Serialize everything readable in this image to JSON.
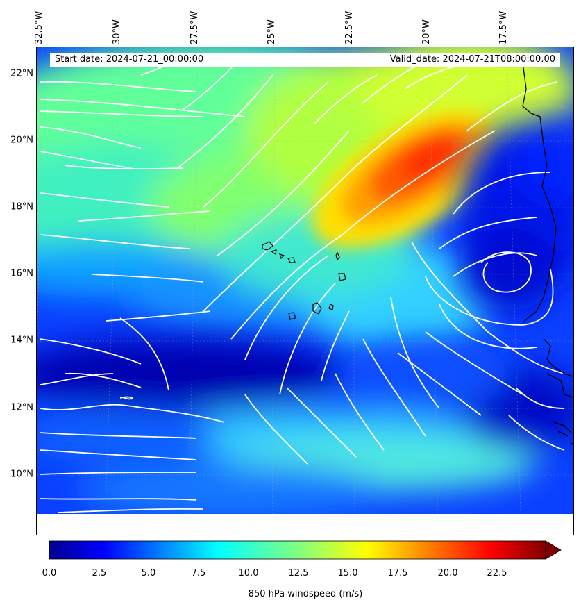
{
  "header": {
    "start_date": "Start date: 2024-07-21_00:00:00",
    "valid_date": "Valid_date: 2024-07-21T08:00:00.00"
  },
  "axes": {
    "lon_labels": [
      "32.5°W",
      "30°W",
      "27.5°W",
      "25°W",
      "22.5°W",
      "20°W",
      "17.5°W"
    ],
    "lat_labels": [
      "22°N",
      "20°N",
      "18°N",
      "16°N",
      "14°N",
      "12°N",
      "10°N"
    ]
  },
  "colorbar": {
    "label": "850 hPa windspeed (m/s)",
    "ticks": [
      "0.0",
      "2.5",
      "5.0",
      "7.5",
      "10.0",
      "12.5",
      "15.0",
      "17.5",
      "20.0",
      "22.5"
    ],
    "colormap": "jet",
    "range": [
      0,
      25
    ],
    "extend": "max"
  },
  "map": {
    "field": "850 hPa windspeed",
    "overlay": "white streamlines",
    "features": [
      "West African coastline",
      "Cape Verde islands"
    ],
    "max_wind_region": "orange-red jet near 19-20°N, 20-22°W",
    "vortex_center": "near 16°N, 17.5°W"
  },
  "colors": {
    "low": "#00008f",
    "mid": "#00ffff",
    "high": "#ff2000",
    "streamline": "#ffffff",
    "coast": "#000000"
  }
}
